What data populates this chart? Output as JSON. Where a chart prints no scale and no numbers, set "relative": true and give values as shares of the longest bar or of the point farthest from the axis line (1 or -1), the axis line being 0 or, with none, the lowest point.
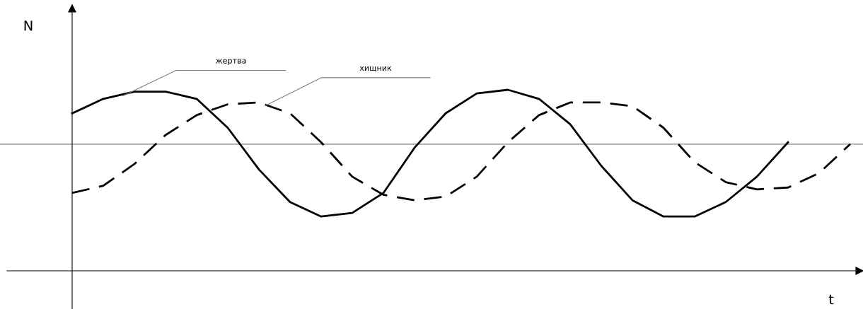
{
  "chart_data": {
    "type": "line",
    "relative": true,
    "xlabel": "t",
    "ylabel": "N",
    "legend": false,
    "categories": [
      null,
      null,
      null,
      null,
      null,
      null,
      null,
      null,
      null,
      null,
      null,
      null,
      null,
      null,
      null,
      null,
      null,
      null,
      null,
      null,
      null,
      null,
      null,
      null,
      null,
      null
    ],
    "series": [
      {
        "name": "жертва",
        "color": "#000000",
        "line_style": "solid",
        "values": [
          0.87,
          0.95,
          0.99,
          0.99,
          0.95,
          0.79,
          0.56,
          0.38,
          0.3,
          0.32,
          0.43,
          0.68,
          0.87,
          0.98,
          1.0,
          0.95,
          0.81,
          0.58,
          0.39,
          0.3,
          0.3,
          0.38,
          0.52,
          0.71,
          null,
          null
        ]
      },
      {
        "name": "хищник",
        "color": "#000000",
        "line_style": "dashed",
        "values": [
          0.43,
          0.47,
          0.59,
          0.75,
          0.86,
          0.92,
          0.93,
          0.87,
          0.71,
          0.52,
          0.42,
          0.39,
          0.41,
          0.52,
          0.71,
          0.86,
          0.93,
          0.93,
          0.91,
          0.79,
          0.6,
          0.49,
          0.45,
          0.46,
          0.54,
          0.7
        ]
      }
    ],
    "ref_lines": [
      {
        "axis": "y",
        "value": 0.7,
        "color": "#808080"
      }
    ]
  }
}
